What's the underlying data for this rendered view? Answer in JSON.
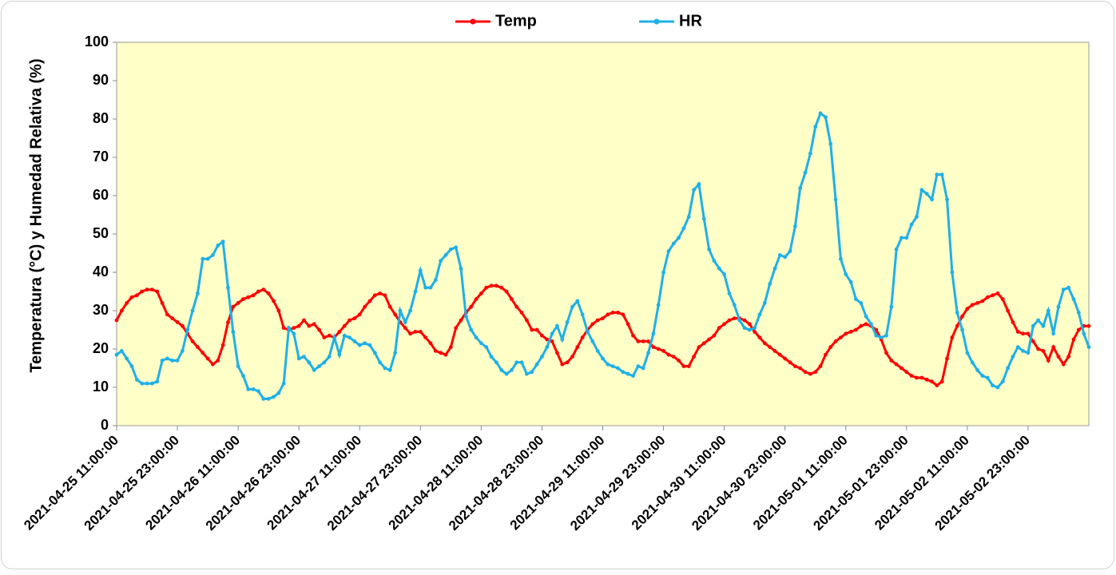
{
  "chart_data": {
    "type": "line",
    "y_label": "Temperatura (°C) y Humedad Relativa (%)",
    "legend": "top",
    "grid": false,
    "categories": [
      "2021-04-25 11:00:00",
      null,
      null,
      null,
      null,
      null,
      null,
      null,
      null,
      null,
      null,
      null,
      "2021-04-25 23:00:00",
      null,
      null,
      null,
      null,
      null,
      null,
      null,
      null,
      null,
      null,
      null,
      "2021-04-26 11:00:00",
      null,
      null,
      null,
      null,
      null,
      null,
      null,
      null,
      null,
      null,
      null,
      "2021-04-26 23:00:00",
      null,
      null,
      null,
      null,
      null,
      null,
      null,
      null,
      null,
      null,
      null,
      "2021-04-27 11:00:00",
      null,
      null,
      null,
      null,
      null,
      null,
      null,
      null,
      null,
      null,
      null,
      "2021-04-27 23:00:00",
      null,
      null,
      null,
      null,
      null,
      null,
      null,
      null,
      null,
      null,
      null,
      "2021-04-28 11:00:00",
      null,
      null,
      null,
      null,
      null,
      null,
      null,
      null,
      null,
      null,
      null,
      "2021-04-28 23:00:00",
      null,
      null,
      null,
      null,
      null,
      null,
      null,
      null,
      null,
      null,
      null,
      "2021-04-29 11:00:00",
      null,
      null,
      null,
      null,
      null,
      null,
      null,
      null,
      null,
      null,
      null,
      "2021-04-29 23:00:00",
      null,
      null,
      null,
      null,
      null,
      null,
      null,
      null,
      null,
      null,
      null,
      "2021-04-30 11:00:00",
      null,
      null,
      null,
      null,
      null,
      null,
      null,
      null,
      null,
      null,
      null,
      "2021-04-30 23:00:00",
      null,
      null,
      null,
      null,
      null,
      null,
      null,
      null,
      null,
      null,
      null,
      "2021-05-01 11:00:00",
      null,
      null,
      null,
      null,
      null,
      null,
      null,
      null,
      null,
      null,
      null,
      "2021-05-01 23:00:00",
      null,
      null,
      null,
      null,
      null,
      null,
      null,
      null,
      null,
      null,
      null,
      "2021-05-02 11:00:00",
      null,
      null,
      null,
      null,
      null,
      null,
      null,
      null,
      null,
      null,
      null,
      "2021-05-02 23:00:00",
      null,
      null,
      null,
      null,
      null,
      null,
      null,
      null,
      null,
      null,
      null,
      null
    ],
    "series": [
      {
        "name": "Temp",
        "color": "#ff0000",
        "values": [
          27.5,
          30,
          32,
          33.5,
          34,
          35,
          35.5,
          35.5,
          35,
          32,
          29,
          28,
          27,
          26,
          24,
          22,
          20.5,
          19,
          17.5,
          16,
          17,
          21,
          27,
          31,
          32,
          33,
          33.5,
          34,
          35,
          35.5,
          34.5,
          32.5,
          30,
          25.5,
          25,
          25.5,
          26,
          27.5,
          26,
          26.5,
          25,
          23,
          23.5,
          23,
          24.5,
          26,
          27.5,
          28,
          29,
          31,
          32.5,
          34,
          34.5,
          34,
          31,
          29,
          27,
          25.5,
          24,
          24.5,
          24.5,
          23,
          21.5,
          19.5,
          19,
          18.5,
          20.5,
          25.5,
          27.5,
          29.5,
          31,
          33,
          34.5,
          36,
          36.5,
          36.5,
          36,
          35,
          33,
          31,
          29.5,
          27.5,
          25,
          25,
          23.5,
          22.5,
          22,
          19,
          16,
          16.5,
          18,
          20.5,
          23,
          25,
          26.5,
          27.5,
          28,
          29,
          29.5,
          29.5,
          29,
          26.5,
          23.5,
          22,
          22,
          22,
          20.5,
          20,
          19.5,
          18.5,
          18,
          17,
          15.5,
          15.5,
          18,
          20.5,
          21.5,
          22.5,
          23.5,
          25.5,
          26.5,
          27.5,
          28,
          28,
          27.5,
          26.5,
          24.5,
          23,
          21.5,
          20.5,
          19.5,
          18.5,
          17.5,
          16.5,
          15.5,
          15,
          14,
          13.5,
          14,
          15.5,
          18.5,
          20.5,
          22,
          23,
          24,
          24.5,
          25,
          26,
          26.5,
          26,
          25,
          22.5,
          19,
          17,
          16,
          15,
          14,
          13,
          12.5,
          12.5,
          12,
          11.5,
          10.5,
          11.5,
          17.5,
          23,
          26,
          28.5,
          30.5,
          31.5,
          32,
          32.5,
          33.5,
          34,
          34.5,
          33,
          30,
          27,
          24.5,
          24,
          24,
          22,
          20,
          19.5,
          17,
          20.5,
          18,
          16,
          18,
          22.5,
          25,
          26,
          26
        ]
      },
      {
        "name": "HR",
        "color": "#1fb0e6",
        "values": [
          18.5,
          19.5,
          17.5,
          15.5,
          12,
          11,
          11,
          11,
          11.5,
          17,
          17.5,
          17,
          17,
          19.5,
          25,
          30,
          34.5,
          43.5,
          43.5,
          44.5,
          47,
          48,
          36,
          24.5,
          15.5,
          13,
          9.5,
          9.5,
          9,
          7,
          7,
          7.5,
          8.5,
          11,
          25.5,
          24,
          17.5,
          18,
          16.5,
          14.5,
          15.5,
          16.5,
          18,
          23,
          18.5,
          23.5,
          23,
          22,
          21,
          21.5,
          21,
          19,
          16.5,
          15,
          14.5,
          19,
          30,
          27,
          30,
          35,
          40.5,
          36,
          36,
          38,
          43,
          44.5,
          46,
          46.5,
          41,
          28.5,
          25,
          23,
          21.5,
          20.5,
          18,
          16.5,
          14.5,
          13.5,
          14.5,
          16.5,
          16.5,
          13.5,
          14,
          16,
          18,
          20.5,
          24,
          26,
          22.5,
          27,
          31,
          32.5,
          29,
          24.5,
          22,
          19.5,
          17.5,
          16,
          15.5,
          15,
          14,
          13.5,
          13,
          15.5,
          15,
          19,
          24,
          31.5,
          40,
          45.5,
          47.5,
          49,
          51.5,
          54.5,
          61.5,
          63,
          54,
          46,
          43,
          41,
          39.5,
          34.5,
          31.5,
          27.5,
          25.5,
          25,
          25.5,
          29,
          32,
          37,
          41,
          44.5,
          44,
          45.5,
          52,
          62,
          66,
          71,
          78,
          81.5,
          80.5,
          73.5,
          59,
          43.5,
          39.5,
          37.5,
          33,
          32,
          28.5,
          26.5,
          23.5,
          23,
          23.5,
          31,
          46,
          49,
          49,
          52.5,
          54.5,
          61.5,
          60.5,
          59,
          65.5,
          65.5,
          59,
          40,
          29.5,
          25,
          19,
          16.5,
          14.5,
          13,
          12.5,
          10.5,
          10,
          11.5,
          15,
          18,
          20.5,
          19.5,
          19,
          26,
          27.5,
          26,
          30,
          24,
          31,
          35.5,
          36,
          33,
          29.5,
          24,
          20.5
        ]
      }
    ],
    "ylim": [
      0,
      100
    ],
    "yticks": [
      0,
      10,
      20,
      30,
      40,
      50,
      60,
      70,
      80,
      90,
      100
    ]
  }
}
